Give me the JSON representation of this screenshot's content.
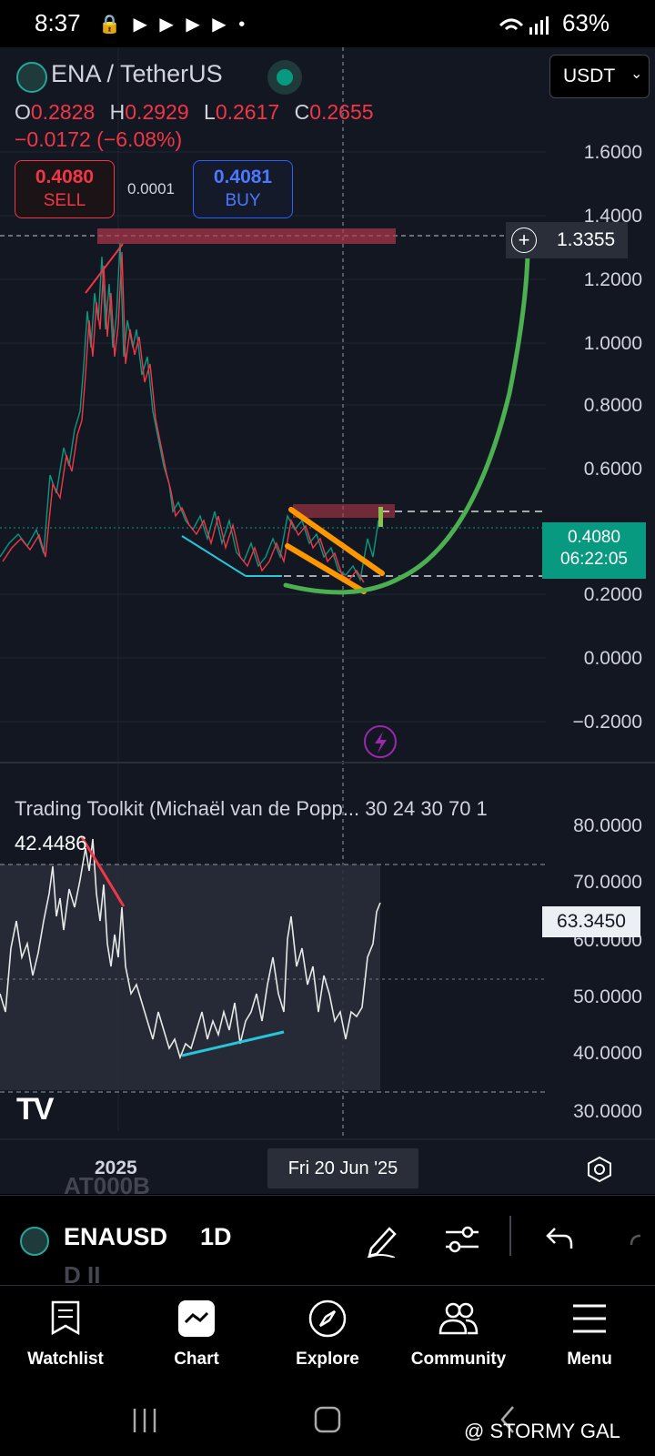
{
  "status_bar": {
    "time": "8:37",
    "icons": "🔒 ▶ ▶ ▶ ▶ •",
    "battery": "63%"
  },
  "header": {
    "symbol_title": "ENA / TetherUS",
    "currency": "USDT"
  },
  "ohlc": {
    "o_label": "O",
    "o": "0.2828",
    "h_label": "H",
    "h": "0.2929",
    "l_label": "L",
    "l": "0.2617",
    "c_label": "C",
    "c": "0.2655",
    "change": "−0.0172 (−6.08%)"
  },
  "trade": {
    "sell_price": "0.4080",
    "sell_label": "SELL",
    "spread": "0.0001",
    "buy_price": "0.4081",
    "buy_label": "BUY"
  },
  "price_axis": [
    "1.6000",
    "1.4000",
    "1.2000",
    "1.0000",
    "0.8000",
    "0.6000",
    "0.2000",
    "0.0000",
    "−0.2000"
  ],
  "horizontal_line_price": "1.3355",
  "current_price": {
    "price": "0.4080",
    "countdown": "06:22:05"
  },
  "indicator": {
    "title": "Trading Toolkit (Michaël van de Popp... 30 24 30 70 1",
    "value": "42.4486",
    "axis": [
      "80.0000",
      "70.0000",
      "60.0000",
      "50.0000",
      "40.0000",
      "30.0000"
    ],
    "last_value": "63.3450"
  },
  "time_axis": {
    "year": "2025",
    "crosshair_date": "Fri 20 Jun '25"
  },
  "toolbar": {
    "symbol": "ENAUSD",
    "interval": "1D",
    "ghost_top": "AT000B",
    "ghost_bottom": "D II"
  },
  "nav": [
    {
      "label": "Watchlist",
      "icon": "watchlist-icon"
    },
    {
      "label": "Chart",
      "icon": "chart-icon"
    },
    {
      "label": "Explore",
      "icon": "compass-icon"
    },
    {
      "label": "Community",
      "icon": "community-icon"
    },
    {
      "label": "Menu",
      "icon": "menu-icon"
    }
  ],
  "watermark": "@ STORMY GAL",
  "colors": {
    "background": "#131722",
    "down": "#f23645",
    "up": "#089981",
    "green_curve": "#4caf50",
    "orange_channel": "#ff9800"
  },
  "chart_data": {
    "type": "candlestick",
    "symbol": "ENA / TetherUS",
    "interval": "1D",
    "ylim": [
      -0.2,
      1.6
    ],
    "y_ticks": [
      1.6,
      1.4,
      1.2,
      1.0,
      0.8,
      0.6,
      0.2,
      0.0,
      -0.2
    ],
    "last": 0.408,
    "resistance_zones": [
      [
        1.32,
        1.36
      ],
      [
        0.46,
        0.5
      ]
    ]
  }
}
